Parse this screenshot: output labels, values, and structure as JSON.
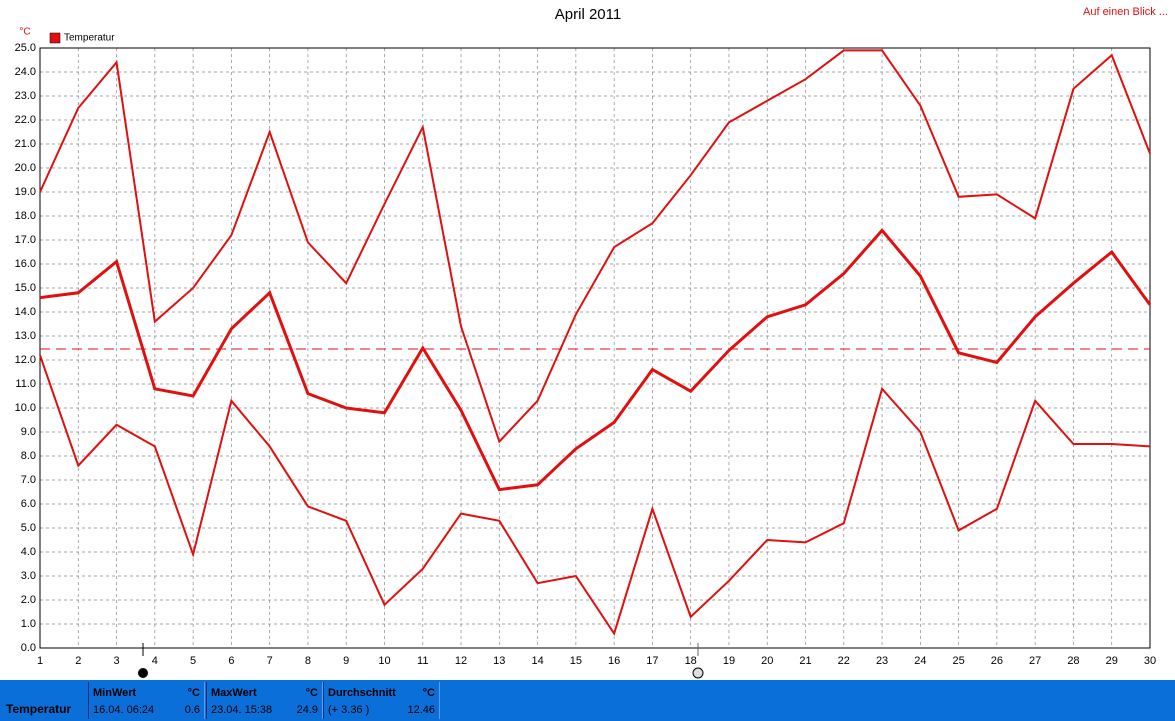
{
  "chart_data": {
    "type": "line",
    "title": "April 2011",
    "link": "Auf einen Blick ...",
    "y_unit": "°C",
    "legend": "Temperatur",
    "grid": true,
    "x": [
      1,
      2,
      3,
      4,
      5,
      6,
      7,
      8,
      9,
      10,
      11,
      12,
      13,
      14,
      15,
      16,
      17,
      18,
      19,
      20,
      21,
      22,
      23,
      24,
      25,
      26,
      27,
      28,
      29,
      30
    ],
    "xlim": [
      1,
      30
    ],
    "xticks": [
      1,
      2,
      3,
      4,
      5,
      6,
      7,
      8,
      9,
      10,
      11,
      12,
      13,
      14,
      15,
      16,
      17,
      18,
      19,
      20,
      21,
      22,
      23,
      24,
      25,
      26,
      27,
      28,
      29,
      30
    ],
    "ylim": [
      0,
      25
    ],
    "yticks": [
      {
        "value": 0,
        "label": "0.0"
      },
      {
        "value": 1,
        "label": "1.0"
      },
      {
        "value": 2,
        "label": "2.0"
      },
      {
        "value": 3,
        "label": "3.0"
      },
      {
        "value": 4,
        "label": "4.0"
      },
      {
        "value": 5,
        "label": "5.0"
      },
      {
        "value": 6,
        "label": "6.0"
      },
      {
        "value": 7,
        "label": "7.0"
      },
      {
        "value": 8,
        "label": "8.0"
      },
      {
        "value": 9,
        "label": "9.0"
      },
      {
        "value": 10,
        "label": "10.0"
      },
      {
        "value": 11,
        "label": "11.0"
      },
      {
        "value": 12,
        "label": "12.0"
      },
      {
        "value": 13,
        "label": "13.0"
      },
      {
        "value": 14,
        "label": "14.0"
      },
      {
        "value": 15,
        "label": "15.0"
      },
      {
        "value": 16,
        "label": "16.0"
      },
      {
        "value": 17,
        "label": "17.0"
      },
      {
        "value": 18,
        "label": "18.0"
      },
      {
        "value": 19,
        "label": "19.0"
      },
      {
        "value": 20,
        "label": "20.0"
      },
      {
        "value": 21,
        "label": "21.0"
      },
      {
        "value": 22,
        "label": "22.0"
      },
      {
        "value": 23,
        "label": "23.0"
      },
      {
        "value": 24,
        "label": "24.0"
      },
      {
        "value": 25,
        "label": "25.0"
      }
    ],
    "mean_line": 12.46,
    "series": [
      {
        "color": "#e01010",
        "values": [
          19.0,
          22.5,
          24.4,
          13.6,
          15.0,
          17.2,
          21.5,
          16.9,
          15.2,
          18.5,
          21.7,
          13.4,
          8.6,
          10.3,
          13.9,
          16.7,
          17.7,
          19.7,
          21.9,
          22.8,
          23.7,
          24.9,
          24.9,
          22.6,
          18.8,
          18.9,
          17.9,
          23.3,
          24.7,
          20.6
        ]
      },
      {
        "color": "#e01010",
        "values": [
          14.6,
          14.8,
          16.1,
          10.8,
          10.5,
          13.3,
          14.8,
          10.6,
          10.0,
          9.8,
          12.5,
          9.9,
          6.6,
          6.8,
          8.3,
          9.4,
          11.6,
          10.7,
          12.4,
          13.8,
          14.3,
          15.6,
          17.4,
          15.5,
          12.3,
          11.9,
          13.8,
          15.2,
          16.5,
          14.3
        ]
      },
      {
        "color": "#e01010",
        "values": [
          12.2,
          7.6,
          9.3,
          8.4,
          3.9,
          10.3,
          8.4,
          5.9,
          5.3,
          1.8,
          3.3,
          5.6,
          5.3,
          2.7,
          3.0,
          0.6,
          5.8,
          1.3,
          2.8,
          4.5,
          4.4,
          5.2,
          10.8,
          9.0,
          4.9,
          5.8,
          10.3,
          8.5,
          8.5,
          8.4
        ]
      }
    ]
  },
  "footer": {
    "label": "Temperatur",
    "panels": [
      {
        "title": "MinWert",
        "unit": "°C",
        "when": "16.04. 06:24",
        "value": 0.6
      },
      {
        "title": "MaxWert",
        "unit": "°C",
        "when": "23.04. 15:38",
        "value": 24.9
      },
      {
        "title": "Durchschnitt",
        "unit": "°C",
        "when": "(+ 3.36 )",
        "value": 12.46
      }
    ]
  }
}
